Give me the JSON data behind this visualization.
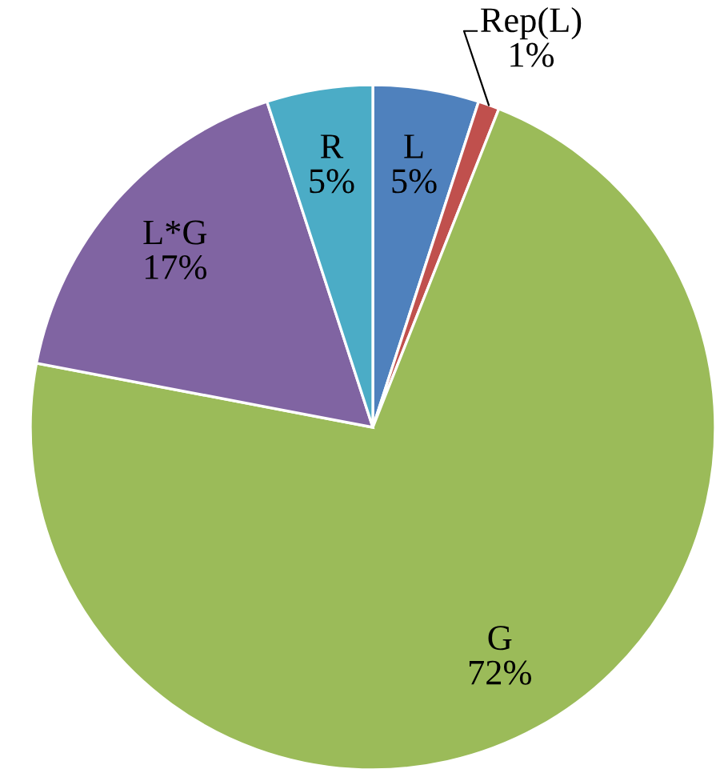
{
  "chart_data": {
    "type": "pie",
    "categories": [
      "L",
      "Rep(L)",
      "G",
      "L*G",
      "R"
    ],
    "values": [
      5,
      1,
      72,
      17,
      5
    ],
    "value_labels": [
      "5%",
      "1%",
      "72%",
      "17%",
      "5%"
    ],
    "colors": [
      "#4f81bd",
      "#c0504d",
      "#9bbb59",
      "#8064a2",
      "#4bacc6"
    ],
    "legend": false
  }
}
